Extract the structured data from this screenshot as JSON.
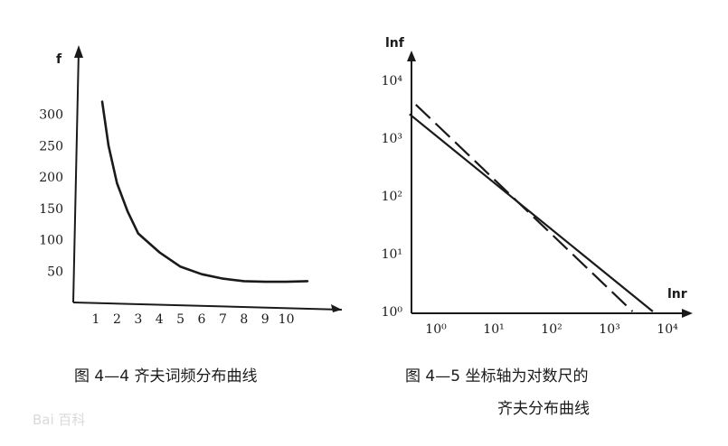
{
  "chart_data": [
    {
      "type": "line",
      "y_axis_label": "f",
      "categories": [
        "1",
        "2",
        "3",
        "4",
        "5",
        "6",
        "7",
        "8",
        "9",
        "10"
      ],
      "x_tick_labels": [
        "1",
        "2",
        "3",
        "4",
        "5",
        "6",
        "7",
        "8",
        "9",
        "10"
      ],
      "y_tick_labels": [
        "50",
        "100",
        "150",
        "200",
        "250",
        "300"
      ],
      "series": [
        {
          "x": [
            1.3,
            1.6,
            2.0,
            2.5,
            3.0,
            3.5,
            4.0,
            5.0,
            6.0,
            7.0,
            8.0,
            9.0,
            10.0,
            11.0
          ],
          "y": [
            320,
            250,
            190,
            145,
            110,
            95,
            80,
            57,
            45,
            38,
            34,
            33,
            33,
            34
          ]
        }
      ],
      "ylim": [
        0,
        340
      ],
      "caption": "图 4—4   齐夫词频分布曲线"
    },
    {
      "type": "line",
      "y_axis_label": "lnf",
      "x_axis_label": "lnr",
      "x_tick_labels": [
        "10⁰",
        "10¹",
        "10²",
        "10³",
        "10⁴"
      ],
      "y_tick_labels": [
        "10⁰",
        "10¹",
        "10²",
        "10³",
        "10⁴"
      ],
      "x_scale": "log",
      "y_scale": "log",
      "series": [
        {
          "style": "solid",
          "x": [
            0.35,
            5600
          ],
          "y": [
            2600,
            1
          ]
        },
        {
          "style": "dashed",
          "x": [
            0.45,
            2500
          ],
          "y": [
            3800,
            1
          ]
        }
      ],
      "caption_lines": [
        "图 4—5   坐标轴为对数尺的",
        "齐夫分布曲线"
      ]
    }
  ],
  "watermark": "Bai 百科"
}
